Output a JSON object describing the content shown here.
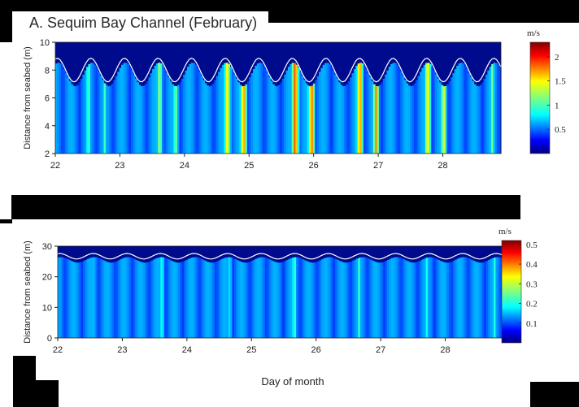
{
  "chart_data": [
    {
      "type": "heatmap",
      "title": "A. Sequim Bay Channel (February)",
      "ylabel": "Distance from seabed (m)",
      "xlabel": "",
      "x_ticks": [
        "22",
        "23",
        "24",
        "25",
        "26",
        "27",
        "28"
      ],
      "xlim": [
        22,
        28.9
      ],
      "y_ticks": [
        "2",
        "4",
        "6",
        "8",
        "10"
      ],
      "ylim": [
        2,
        10
      ],
      "colorbar": {
        "unit": "m/s",
        "ticks": [
          "0.5",
          "1",
          "1.5",
          "2"
        ],
        "range": [
          0,
          2.3
        ]
      },
      "colormap": "jet",
      "surface_line": {
        "color": "#ffffff",
        "mean": 8.0,
        "amplitude": 0.85,
        "period_days": 0.52
      },
      "peak_speed_bands": [
        {
          "day": 22.5,
          "value": 1.1
        },
        {
          "day": 22.75,
          "value": 1.0
        },
        {
          "day": 23.6,
          "value": 1.3
        },
        {
          "day": 23.85,
          "value": 1.2
        },
        {
          "day": 24.65,
          "value": 1.6
        },
        {
          "day": 24.9,
          "value": 1.8
        },
        {
          "day": 25.7,
          "value": 2.0
        },
        {
          "day": 25.95,
          "value": 1.9
        },
        {
          "day": 26.7,
          "value": 1.8
        },
        {
          "day": 26.95,
          "value": 1.7
        },
        {
          "day": 27.75,
          "value": 1.6
        },
        {
          "day": 28.0,
          "value": 1.4
        },
        {
          "day": 28.75,
          "value": 1.1
        }
      ]
    },
    {
      "type": "heatmap",
      "title": "",
      "ylabel": "Distance from seabed (m)",
      "xlabel": "Day of month",
      "x_ticks": [
        "22",
        "23",
        "24",
        "25",
        "26",
        "27",
        "28"
      ],
      "xlim": [
        22,
        28.9
      ],
      "y_ticks": [
        "0",
        "10",
        "20",
        "30"
      ],
      "ylim": [
        0,
        30
      ],
      "colorbar": {
        "unit": "m/s",
        "ticks": [
          "0.1",
          "0.2",
          "0.3",
          "0.4",
          "0.5"
        ],
        "range": [
          0,
          0.52
        ]
      },
      "colormap": "jet",
      "surface_line": {
        "color": "#ffffff",
        "mean": 26.7,
        "amplitude": 0.9,
        "period_days": 0.52
      },
      "peak_speed_bands": [
        {
          "day": 22.55,
          "value": 0.18
        },
        {
          "day": 23.6,
          "value": 0.22
        },
        {
          "day": 24.65,
          "value": 0.2
        },
        {
          "day": 25.65,
          "value": 0.24
        },
        {
          "day": 26.65,
          "value": 0.22
        },
        {
          "day": 27.7,
          "value": 0.2
        },
        {
          "day": 28.75,
          "value": 0.21
        }
      ]
    }
  ]
}
